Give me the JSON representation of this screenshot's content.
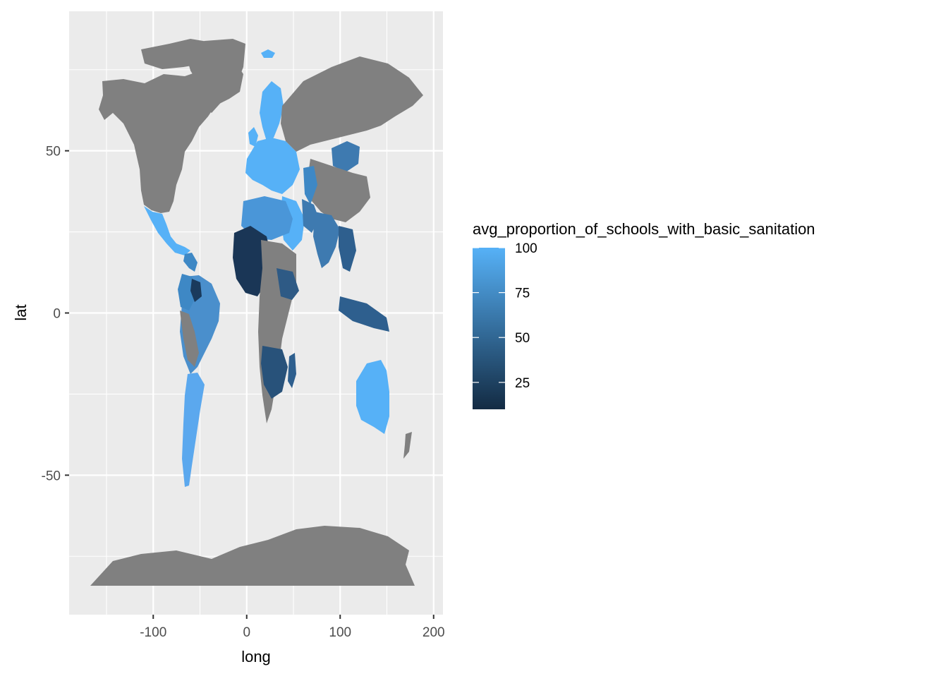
{
  "chart_data": {
    "type": "choropleth",
    "xlabel": "long",
    "ylabel": "lat",
    "xlim": [
      -190,
      210
    ],
    "ylim": [
      -93,
      93
    ],
    "x_ticks": [
      -100,
      0,
      100,
      200
    ],
    "x_tick_labels": [
      "-100",
      "0",
      "100",
      "200"
    ],
    "y_ticks": [
      -50,
      0,
      50
    ],
    "y_tick_labels": [
      "-50",
      "0",
      "50"
    ],
    "grid": true,
    "legend": {
      "title": "avg_proportion_of_schools_with_basic_sanitation",
      "position": "right",
      "min": 10,
      "max": 100,
      "breaks": [
        100,
        75,
        50,
        25
      ],
      "break_labels": [
        "100",
        "75",
        "50",
        "25"
      ],
      "low_color": "#132B43",
      "high_color": "#56B1F7"
    },
    "colors": {
      "panel_bg": "#EBEBEB",
      "grid": "#FFFFFF",
      "missing": "#808080"
    }
  }
}
